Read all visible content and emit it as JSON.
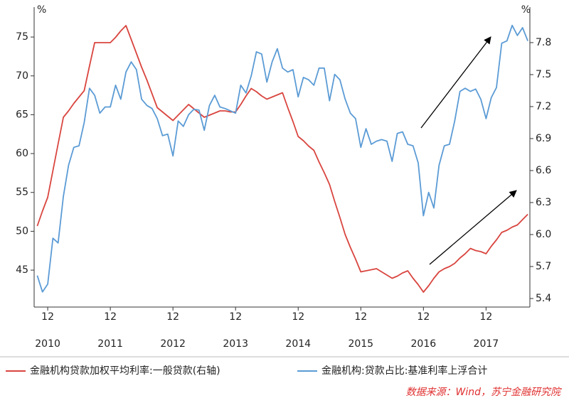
{
  "chart_data": {
    "type": "line",
    "y_unit": "%",
    "y2_unit": "%",
    "categories": [
      null,
      null,
      "12",
      null,
      null,
      null,
      null,
      null,
      null,
      null,
      null,
      null,
      null,
      null,
      "12",
      null,
      null,
      null,
      null,
      null,
      null,
      null,
      null,
      null,
      null,
      null,
      "12",
      null,
      null,
      null,
      null,
      null,
      null,
      null,
      null,
      null,
      null,
      null,
      "12",
      null,
      null,
      null,
      null,
      null,
      null,
      null,
      null,
      null,
      null,
      null,
      "12",
      null,
      null,
      null,
      null,
      null,
      null,
      null,
      null,
      null,
      null,
      null,
      "12",
      null,
      null,
      null,
      null,
      null,
      null,
      null,
      null,
      null,
      null,
      null,
      "12",
      null,
      null,
      null,
      null,
      null,
      null,
      null,
      null,
      null,
      null,
      null,
      "12",
      null,
      null,
      null,
      null,
      null,
      null,
      null,
      null
    ],
    "year_labels": [
      null,
      null,
      "2010",
      null,
      null,
      null,
      null,
      null,
      null,
      null,
      null,
      null,
      null,
      null,
      "2011",
      null,
      null,
      null,
      null,
      null,
      null,
      null,
      null,
      null,
      null,
      null,
      "2012",
      null,
      null,
      null,
      null,
      null,
      null,
      null,
      null,
      null,
      null,
      null,
      "2013",
      null,
      null,
      null,
      null,
      null,
      null,
      null,
      null,
      null,
      null,
      null,
      "2014",
      null,
      null,
      null,
      null,
      null,
      null,
      null,
      null,
      null,
      null,
      null,
      "2015",
      null,
      null,
      null,
      null,
      null,
      null,
      null,
      null,
      null,
      null,
      null,
      "2016",
      null,
      null,
      null,
      null,
      null,
      null,
      null,
      null,
      null,
      null,
      null,
      "2017",
      null,
      null,
      null,
      null,
      null,
      null,
      null,
      null
    ],
    "series": [
      {
        "name": "金融机构贷款加权平均利率:一般贷款(右轴)",
        "color": "#d9453f",
        "axis": "y2",
        "values": [
          6.08,
          6.22,
          6.35,
          6.6,
          6.85,
          7.1,
          7.16,
          7.23,
          7.29,
          7.35,
          7.58,
          7.8,
          7.8,
          7.8,
          7.8,
          7.85,
          7.91,
          7.96,
          7.83,
          7.7,
          7.57,
          7.45,
          7.32,
          7.19,
          7.15,
          7.11,
          7.07,
          7.12,
          7.17,
          7.22,
          7.18,
          7.14,
          7.1,
          7.12,
          7.14,
          7.16,
          7.16,
          7.15,
          7.15,
          7.22,
          7.3,
          7.37,
          7.34,
          7.3,
          7.27,
          7.29,
          7.31,
          7.33,
          7.19,
          7.06,
          6.92,
          6.88,
          6.83,
          6.79,
          6.68,
          6.58,
          6.47,
          6.31,
          6.16,
          6.0,
          5.88,
          5.77,
          5.65,
          5.66,
          5.67,
          5.68,
          5.65,
          5.62,
          5.59,
          5.61,
          5.64,
          5.66,
          5.59,
          5.53,
          5.46,
          5.52,
          5.59,
          5.65,
          5.68,
          5.7,
          5.73,
          5.78,
          5.82,
          5.87,
          5.85,
          5.84,
          5.82,
          5.89,
          5.95,
          6.02,
          6.04,
          6.07,
          6.09,
          6.14,
          6.19
        ]
      },
      {
        "name": "金融机构:贷款占比:基准利率上浮合计",
        "color": "#5b9bd5",
        "axis": "y",
        "values": [
          44.3,
          42.2,
          43.2,
          49.1,
          48.5,
          54.5,
          58.5,
          60.8,
          61.0,
          64.0,
          68.4,
          67.5,
          65.2,
          66.0,
          66.0,
          68.8,
          67.0,
          70.5,
          71.8,
          70.8,
          67.0,
          66.2,
          65.8,
          64.5,
          62.3,
          62.5,
          59.7,
          64.2,
          63.5,
          65.0,
          65.7,
          65.6,
          63.0,
          66.2,
          67.5,
          66.0,
          65.8,
          65.5,
          65.2,
          68.8,
          67.8,
          70.0,
          73.1,
          72.8,
          69.2,
          71.8,
          73.5,
          71.0,
          70.5,
          70.8,
          67.3,
          69.8,
          69.5,
          68.8,
          71.0,
          71.0,
          66.8,
          70.2,
          69.5,
          67.0,
          65.2,
          64.5,
          60.8,
          63.2,
          61.2,
          61.6,
          61.8,
          61.6,
          59.0,
          62.6,
          62.8,
          61.2,
          61.0,
          58.8,
          52.0,
          55.0,
          53.0,
          58.5,
          61.0,
          61.2,
          64.2,
          68.0,
          68.4,
          68.0,
          68.3,
          67.0,
          64.5,
          67.2,
          68.5,
          74.2,
          74.5,
          76.5,
          75.2,
          76.2,
          74.5
        ]
      }
    ],
    "ylim": [
      40.25,
      78.85
    ],
    "yticks": [
      45,
      50,
      55,
      60,
      65,
      70,
      75
    ],
    "y2lim": [
      5.32,
      8.133
    ],
    "y2ticks": [
      5.4,
      5.7,
      {
        "value": 6,
        "label": "6.0"
      },
      6.3,
      6.6,
      6.9,
      7.2,
      7.5,
      7.8
    ],
    "source": "数据来源：Wind，苏宁金融研究院"
  }
}
